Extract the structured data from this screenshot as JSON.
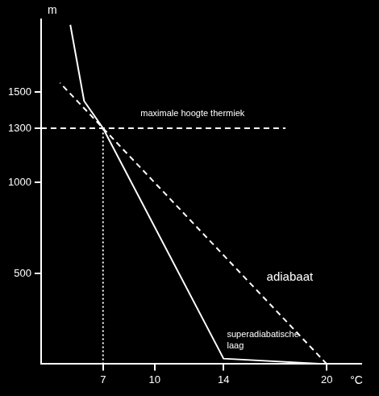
{
  "chart_data": {
    "type": "line",
    "x_label": "°C",
    "y_label": "m",
    "xlim": [
      3.4,
      22
    ],
    "ylim": [
      0,
      1900
    ],
    "xticks": [
      7,
      10,
      14,
      20
    ],
    "yticks": [
      500,
      1000,
      1300,
      1500
    ],
    "grid": false,
    "series": [
      {
        "x": [
          5.1,
          5.9,
          7,
          14,
          20
        ],
        "values": [
          1870,
          1450,
          1300,
          30,
          0
        ],
        "color": "#ffffff",
        "line_style": "solid"
      },
      {
        "x": [
          20,
          4.5
        ],
        "values": [
          0,
          1550
        ],
        "color": "#ffffff",
        "line_style": "dashed"
      },
      {
        "x": [
          3.4,
          17.6
        ],
        "values": [
          1300,
          1300
        ],
        "color": "#ffffff",
        "line_style": "dashed"
      },
      {
        "x": [
          7,
          7
        ],
        "values": [
          0,
          1300
        ],
        "color": "#ffffff",
        "line_style": "dotted"
      }
    ],
    "annotations": [
      {
        "text": "maximale hoogte thermiek",
        "x": 12.2,
        "y": 1380
      },
      {
        "text": "adiabaat",
        "x": 16.5,
        "y": 480
      },
      {
        "text": [
          "superadiabatische",
          "laag"
        ],
        "x": 14.2,
        "y": 160
      }
    ]
  }
}
